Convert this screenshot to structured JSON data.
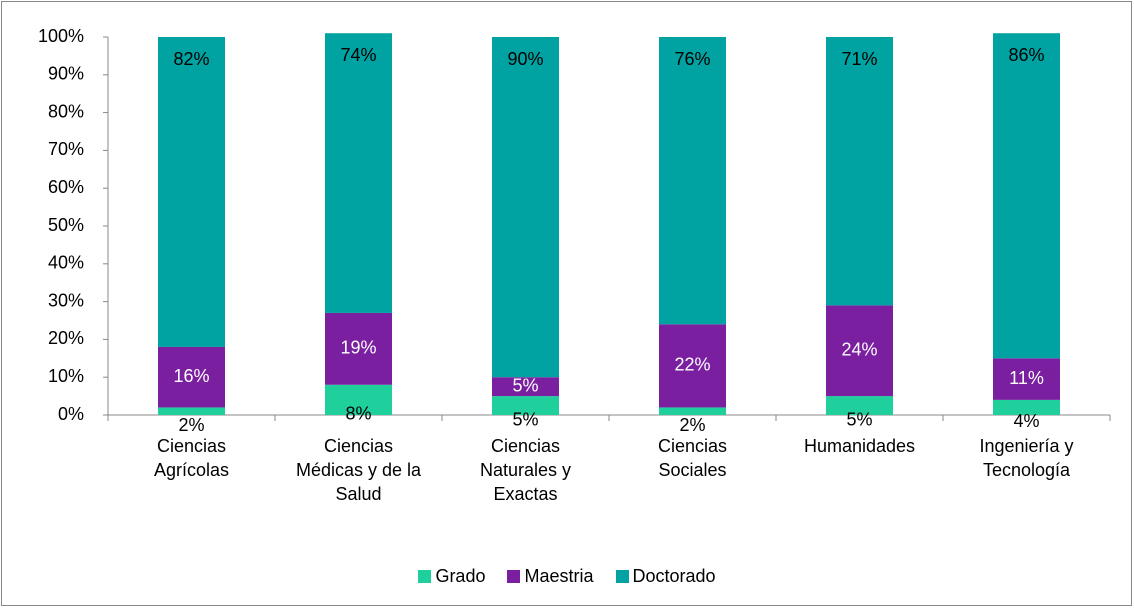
{
  "chart_data": {
    "type": "stacked_bar",
    "categories": [
      "Ciencias Agrícolas",
      "Ciencias Médicas y de la Salud",
      "Ciencias Naturales y Exactas",
      "Ciencias Sociales",
      "Humanidades",
      "Ingeniería y Tecnología"
    ],
    "series": [
      {
        "name": "Grado",
        "color": "#1fcf9c",
        "values": [
          2,
          8,
          5,
          2,
          5,
          4
        ],
        "value_labels": [
          "2%",
          "8%",
          "5%",
          "2%",
          "5%",
          "4%"
        ]
      },
      {
        "name": "Maestria",
        "color": "#7a1fa0",
        "values": [
          16,
          19,
          5,
          22,
          24,
          11
        ],
        "value_labels": [
          "16%",
          "19%",
          "5%",
          "22%",
          "24%",
          "11%"
        ]
      },
      {
        "name": "Doctorado",
        "color": "#00a2a2",
        "values": [
          82,
          74,
          90,
          76,
          71,
          86
        ],
        "value_labels": [
          "82%",
          "74%",
          "90%",
          "76%",
          "71%",
          "86%"
        ]
      }
    ],
    "ylim": [
      0,
      100
    ],
    "yticks": [
      {
        "value": 0,
        "label": "0%"
      },
      {
        "value": 10,
        "label": "10%"
      },
      {
        "value": 20,
        "label": "20%"
      },
      {
        "value": 30,
        "label": "30%"
      },
      {
        "value": 40,
        "label": "40%"
      },
      {
        "value": 50,
        "label": "50%"
      },
      {
        "value": 60,
        "label": "60%"
      },
      {
        "value": 70,
        "label": "70%"
      },
      {
        "value": 80,
        "label": "80%"
      },
      {
        "value": 90,
        "label": "90%"
      },
      {
        "value": 100,
        "label": "100%"
      }
    ],
    "legend": "bottom"
  }
}
